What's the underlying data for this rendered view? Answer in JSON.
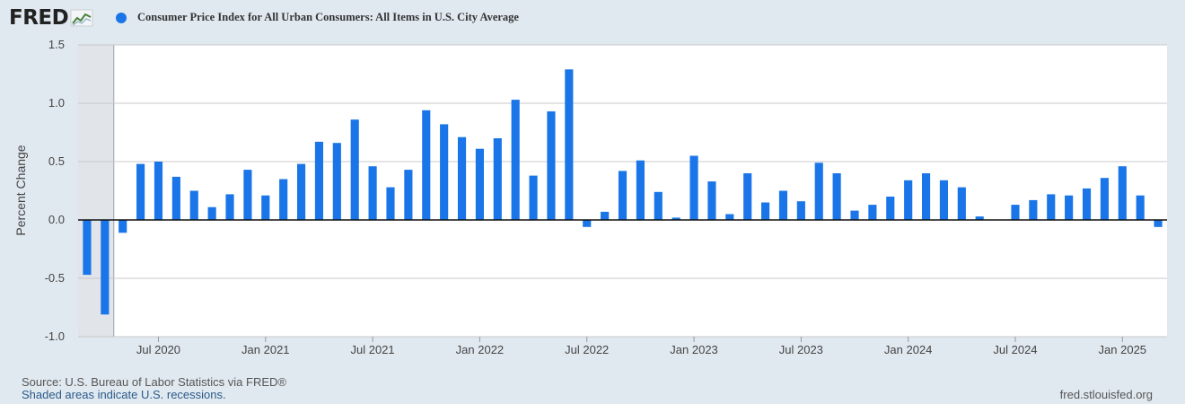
{
  "logo": {
    "text": "FRED"
  },
  "legend": {
    "label": "Consumer Price Index for All Urban Consumers: All Items in U.S. City Average",
    "color": "#1a76e8"
  },
  "footer": {
    "source": "Source: U.S. Bureau of Labor Statistics via FRED®",
    "recession_note": "Shaded areas indicate U.S. recessions.",
    "url": "fred.stlouisfed.org"
  },
  "colors": {
    "bar": "#1a76e8",
    "plot_bg": "#ffffff",
    "grid": "#c8c8c8",
    "recession": "#e1e5ea",
    "zero_line": "#111111"
  },
  "chart_data": {
    "type": "bar",
    "title": "Consumer Price Index for All Urban Consumers: All Items in U.S. City Average",
    "xlabel": "",
    "ylabel": "Percent Change",
    "ylim": [
      -1.0,
      1.5
    ],
    "yticks": [
      1.5,
      1.0,
      0.5,
      0.0,
      -0.5,
      -1.0
    ],
    "ytick_labels": [
      "1.5",
      "1.0",
      "0.5",
      "0.0",
      "-0.5",
      "-1.0"
    ],
    "xticks": [
      {
        "label": "Jul 2020",
        "date": "2020-07"
      },
      {
        "label": "Jan 2021",
        "date": "2021-01"
      },
      {
        "label": "Jul 2021",
        "date": "2021-07"
      },
      {
        "label": "Jan 2022",
        "date": "2022-01"
      },
      {
        "label": "Jul 2022",
        "date": "2022-07"
      },
      {
        "label": "Jan 2023",
        "date": "2023-01"
      },
      {
        "label": "Jul 2023",
        "date": "2023-07"
      },
      {
        "label": "Jan 2024",
        "date": "2024-01"
      },
      {
        "label": "Jul 2024",
        "date": "2024-07"
      },
      {
        "label": "Jan 2025",
        "date": "2025-01"
      }
    ],
    "x_range": [
      "2020-03",
      "2025-04"
    ],
    "recession": {
      "start": "2020-02",
      "end": "2020-04"
    },
    "dates": [
      "2020-03",
      "2020-04",
      "2020-05",
      "2020-06",
      "2020-07",
      "2020-08",
      "2020-09",
      "2020-10",
      "2020-11",
      "2020-12",
      "2021-01",
      "2021-02",
      "2021-03",
      "2021-04",
      "2021-05",
      "2021-06",
      "2021-07",
      "2021-08",
      "2021-09",
      "2021-10",
      "2021-11",
      "2021-12",
      "2022-01",
      "2022-02",
      "2022-03",
      "2022-04",
      "2022-05",
      "2022-06",
      "2022-07",
      "2022-08",
      "2022-09",
      "2022-10",
      "2022-11",
      "2022-12",
      "2023-01",
      "2023-02",
      "2023-03",
      "2023-04",
      "2023-05",
      "2023-06",
      "2023-07",
      "2023-08",
      "2023-09",
      "2023-10",
      "2023-11",
      "2023-12",
      "2024-01",
      "2024-02",
      "2024-03",
      "2024-04",
      "2024-05",
      "2024-06",
      "2024-07",
      "2024-08",
      "2024-09",
      "2024-10",
      "2024-11",
      "2024-12",
      "2025-01",
      "2025-02",
      "2025-03"
    ],
    "values": [
      -0.47,
      -0.81,
      -0.11,
      0.48,
      0.5,
      0.37,
      0.25,
      0.11,
      0.22,
      0.43,
      0.21,
      0.35,
      0.48,
      0.67,
      0.66,
      0.86,
      0.46,
      0.28,
      0.43,
      0.94,
      0.82,
      0.71,
      0.61,
      0.7,
      1.03,
      0.38,
      0.93,
      1.29,
      -0.06,
      0.07,
      0.42,
      0.51,
      0.24,
      0.02,
      0.55,
      0.33,
      0.05,
      0.4,
      0.15,
      0.25,
      0.16,
      0.49,
      0.4,
      0.08,
      0.13,
      0.2,
      0.34,
      0.4,
      0.34,
      0.28,
      0.03,
      null,
      0.13,
      0.17,
      0.22,
      0.21,
      0.27,
      0.36,
      0.46,
      0.21,
      -0.06
    ]
  }
}
